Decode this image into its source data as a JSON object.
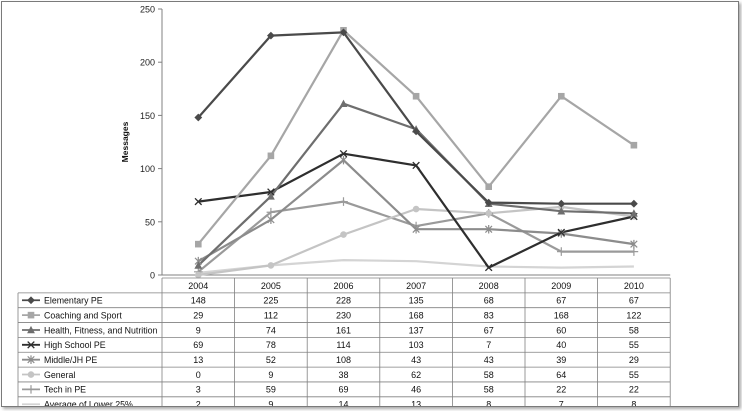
{
  "chart_data": {
    "type": "line",
    "title": "",
    "xlabel": "",
    "ylabel": "Messages",
    "ylim": [
      0,
      250
    ],
    "yticks": [
      0,
      50,
      100,
      150,
      200,
      250
    ],
    "grid": false,
    "legend": "table-below",
    "categories": [
      "2004",
      "2005",
      "2006",
      "2007",
      "2008",
      "2009",
      "2010"
    ],
    "series": [
      {
        "name": "Elementary PE",
        "values": [
          148,
          225,
          228,
          135,
          68,
          67,
          67
        ],
        "color": "#4a4a4a",
        "marker": "diamond"
      },
      {
        "name": "Coaching and Sport",
        "values": [
          29,
          112,
          230,
          168,
          83,
          168,
          122
        ],
        "color": "#a6a6a6",
        "marker": "square"
      },
      {
        "name": "Health, Fitness, and Nutrition",
        "values": [
          9,
          74,
          161,
          137,
          67,
          60,
          58
        ],
        "color": "#6e6e6e",
        "marker": "triangle"
      },
      {
        "name": "High School PE",
        "values": [
          69,
          78,
          114,
          103,
          7,
          40,
          55
        ],
        "color": "#2e2e2e",
        "marker": "x"
      },
      {
        "name": "Middle/JH PE",
        "values": [
          13,
          52,
          108,
          43,
          43,
          39,
          29
        ],
        "color": "#8c8c8c",
        "marker": "star"
      },
      {
        "name": "General",
        "values": [
          0,
          9,
          38,
          62,
          58,
          64,
          55
        ],
        "color": "#c4c4c4",
        "marker": "circle"
      },
      {
        "name": "Tech in PE",
        "values": [
          3,
          59,
          69,
          46,
          58,
          22,
          22
        ],
        "color": "#9a9a9a",
        "marker": "plus"
      },
      {
        "name": "Average of Lower 25%",
        "values": [
          2,
          9,
          14,
          13,
          8,
          7,
          8
        ],
        "color": "#d4d4d4",
        "marker": "none"
      }
    ]
  }
}
